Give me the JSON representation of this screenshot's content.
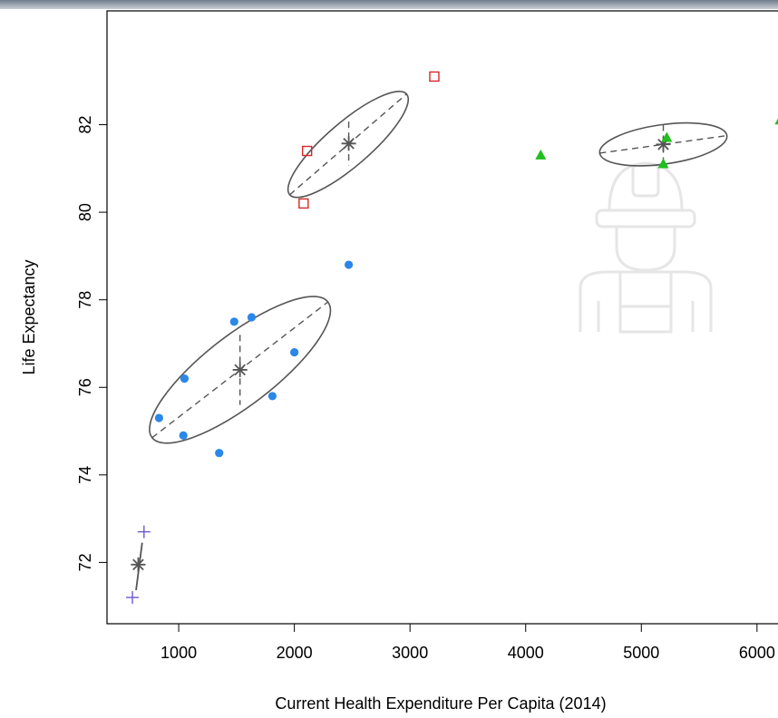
{
  "chart_data": {
    "type": "scatter",
    "title": "",
    "xlabel": "Current Health Expenditure Per Capita (2014)",
    "ylabel": "Life Expectancy",
    "xlim": [
      380,
      6260
    ],
    "ylim": [
      70.6,
      84.6
    ],
    "x_ticks": [
      1000,
      2000,
      3000,
      4000,
      5000,
      6000
    ],
    "y_ticks": [
      72,
      74,
      76,
      78,
      80,
      82
    ],
    "grid": false,
    "legend": "none",
    "series": [
      {
        "marker": "plus",
        "color": "#6a5acd",
        "points": [
          [
            600,
            71.2
          ],
          [
            700,
            72.7
          ]
        ],
        "centroid": [
          650,
          71.95
        ]
      },
      {
        "marker": "circle",
        "color": "#2b87e8",
        "points": [
          [
            830,
            75.3
          ],
          [
            1040,
            74.9
          ],
          [
            1050,
            76.2
          ],
          [
            1350,
            74.5
          ],
          [
            1480,
            77.5
          ],
          [
            1630,
            77.6
          ],
          [
            1810,
            75.8
          ],
          [
            2000,
            76.8
          ],
          [
            2470,
            78.8
          ]
        ],
        "centroid": [
          1530,
          76.4
        ],
        "ellipse": {
          "major_end_a": [
            770,
            74.85
          ],
          "major_end_b": [
            2290,
            77.95
          ],
          "minor_half": 0.8
        }
      },
      {
        "marker": "square",
        "color": "#d62728",
        "points": [
          [
            2080,
            80.2
          ],
          [
            2110,
            81.4
          ],
          [
            3210,
            83.1
          ]
        ],
        "centroid": [
          2470,
          81.57
        ],
        "ellipse": {
          "major_end_a": [
            1960,
            80.4
          ],
          "major_end_b": [
            2970,
            82.7
          ],
          "minor_half": 0.5
        }
      },
      {
        "marker": "triangle",
        "color": "#1fbf1f",
        "points": [
          [
            4130,
            81.3
          ],
          [
            5190,
            81.1
          ],
          [
            5220,
            81.7
          ],
          [
            6200,
            82.1
          ]
        ],
        "centroid": [
          5190,
          81.55
        ],
        "ellipse": {
          "major_end_a": [
            4640,
            81.35
          ],
          "major_end_b": [
            5740,
            81.75
          ],
          "minor_half": 0.45
        }
      }
    ]
  },
  "watermark": {
    "icon": "construction-worker-icon",
    "color": "#e6e6e6"
  }
}
